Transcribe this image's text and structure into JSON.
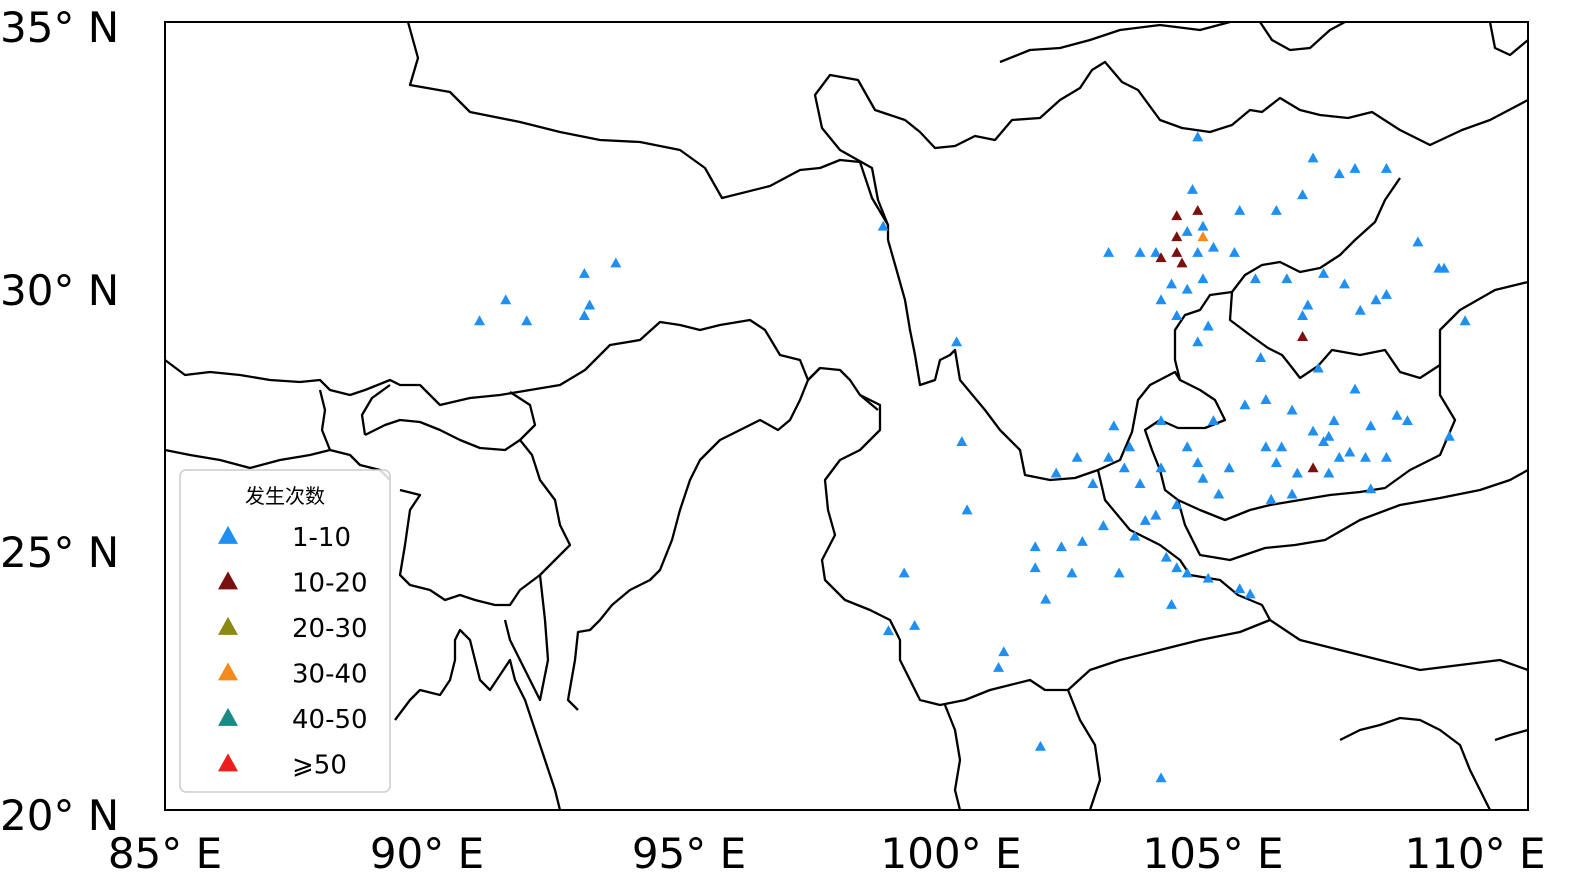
{
  "map": {
    "extent": {
      "lon": [
        85,
        111
      ],
      "lat": [
        20,
        35
      ]
    },
    "x_ticks": [
      {
        "label": "85° E"
      },
      {
        "label": "90° E"
      },
      {
        "label": "95° E"
      },
      {
        "label": "100° E"
      },
      {
        "label": "105° E"
      },
      {
        "label": "110° E"
      }
    ],
    "y_ticks": [
      {
        "label": "35° N"
      },
      {
        "label": "30° N"
      },
      {
        "label": "25° N"
      },
      {
        "label": "20° N"
      }
    ],
    "boundary_color": "#000000"
  },
  "legend": {
    "title": "发生次数",
    "placement": "lower-left",
    "items": [
      {
        "label": "1-10",
        "color": "#1f8ff2",
        "icon": "triangle-icon"
      },
      {
        "label": "10-20",
        "color": "#7a1010",
        "icon": "triangle-icon"
      },
      {
        "label": "20-30",
        "color": "#8a8a14",
        "icon": "triangle-icon"
      },
      {
        "label": "30-40",
        "color": "#f58a1e",
        "icon": "triangle-icon"
      },
      {
        "label": "40-50",
        "color": "#1a8a86",
        "icon": "triangle-icon"
      },
      {
        "label": "⩾50",
        "color": "#ee1c1c",
        "icon": "triangle-icon"
      }
    ]
  },
  "chart_data": {
    "type": "scatter",
    "title": "",
    "xlabel": "",
    "ylabel": "",
    "xlim": [
      85,
      111
    ],
    "ylim": [
      20,
      35
    ],
    "series": [
      {
        "name": "1-10",
        "points": [
          [
            91.0,
            29.3
          ],
          [
            91.5,
            29.7
          ],
          [
            91.9,
            29.3
          ],
          [
            93.0,
            30.2
          ],
          [
            93.1,
            29.6
          ],
          [
            93.0,
            29.4
          ],
          [
            93.6,
            30.4
          ],
          [
            98.7,
            31.1
          ],
          [
            100.1,
            28.9
          ],
          [
            100.2,
            27.0
          ],
          [
            100.3,
            25.7
          ],
          [
            99.1,
            24.5
          ],
          [
            98.8,
            23.4
          ],
          [
            99.3,
            23.5
          ],
          [
            101.0,
            23.0
          ],
          [
            100.9,
            22.7
          ],
          [
            101.7,
            21.2
          ],
          [
            104.0,
            20.6
          ],
          [
            101.6,
            25.0
          ],
          [
            101.6,
            24.6
          ],
          [
            101.8,
            24.0
          ],
          [
            102.0,
            26.4
          ],
          [
            102.1,
            25.0
          ],
          [
            102.3,
            24.5
          ],
          [
            102.4,
            26.7
          ],
          [
            102.5,
            25.1
          ],
          [
            102.7,
            26.2
          ],
          [
            102.9,
            25.4
          ],
          [
            103.0,
            26.7
          ],
          [
            103.1,
            27.3
          ],
          [
            103.2,
            24.5
          ],
          [
            103.3,
            26.5
          ],
          [
            103.4,
            26.9
          ],
          [
            103.5,
            25.2
          ],
          [
            103.6,
            26.2
          ],
          [
            103.7,
            25.5
          ],
          [
            103.9,
            25.6
          ],
          [
            104.0,
            27.4
          ],
          [
            104.0,
            26.5
          ],
          [
            104.1,
            24.8
          ],
          [
            104.3,
            24.6
          ],
          [
            104.3,
            25.8
          ],
          [
            104.5,
            26.9
          ],
          [
            104.5,
            24.5
          ],
          [
            104.7,
            26.6
          ],
          [
            104.8,
            26.3
          ],
          [
            104.9,
            24.4
          ],
          [
            105.0,
            27.4
          ],
          [
            105.1,
            26.0
          ],
          [
            105.3,
            26.5
          ],
          [
            105.5,
            24.2
          ],
          [
            104.2,
            23.9
          ],
          [
            103.0,
            30.6
          ],
          [
            103.6,
            30.6
          ],
          [
            103.9,
            30.6
          ],
          [
            104.2,
            30.0
          ],
          [
            104.0,
            29.7
          ],
          [
            104.3,
            29.4
          ],
          [
            104.7,
            28.9
          ],
          [
            104.9,
            29.2
          ],
          [
            104.5,
            29.9
          ],
          [
            104.8,
            30.1
          ],
          [
            104.7,
            30.6
          ],
          [
            104.5,
            31.0
          ],
          [
            104.8,
            31.1
          ],
          [
            104.6,
            31.8
          ],
          [
            104.7,
            32.8
          ],
          [
            105.0,
            30.7
          ],
          [
            105.5,
            31.4
          ],
          [
            105.4,
            30.6
          ],
          [
            105.8,
            30.1
          ],
          [
            105.9,
            28.6
          ],
          [
            106.0,
            27.8
          ],
          [
            106.2,
            31.4
          ],
          [
            106.4,
            30.1
          ],
          [
            106.5,
            27.6
          ],
          [
            106.6,
            26.4
          ],
          [
            106.7,
            29.4
          ],
          [
            106.8,
            29.6
          ],
          [
            106.9,
            32.4
          ],
          [
            107.1,
            30.2
          ],
          [
            107.0,
            28.4
          ],
          [
            107.3,
            27.4
          ],
          [
            107.4,
            26.7
          ],
          [
            107.4,
            32.1
          ],
          [
            107.5,
            30.0
          ],
          [
            107.7,
            32.2
          ],
          [
            107.8,
            29.5
          ],
          [
            108.0,
            27.3
          ],
          [
            108.1,
            29.7
          ],
          [
            108.5,
            27.5
          ],
          [
            108.7,
            27.4
          ],
          [
            108.3,
            32.2
          ],
          [
            108.3,
            29.8
          ],
          [
            108.9,
            30.8
          ],
          [
            109.3,
            30.3
          ],
          [
            109.4,
            30.3
          ],
          [
            109.8,
            29.3
          ],
          [
            109.5,
            27.1
          ],
          [
            106.7,
            31.7
          ],
          [
            106.9,
            27.2
          ],
          [
            107.1,
            27.0
          ],
          [
            107.2,
            27.1
          ],
          [
            107.6,
            26.8
          ],
          [
            107.9,
            26.7
          ],
          [
            106.2,
            26.6
          ],
          [
            106.3,
            26.9
          ],
          [
            105.6,
            27.7
          ],
          [
            106.0,
            26.9
          ],
          [
            106.5,
            26.0
          ],
          [
            106.1,
            25.9
          ],
          [
            105.7,
            24.1
          ],
          [
            107.2,
            26.4
          ],
          [
            107.7,
            28.0
          ],
          [
            108.0,
            26.1
          ],
          [
            108.3,
            26.7
          ]
        ]
      },
      {
        "name": "10-20",
        "points": [
          [
            104.0,
            30.5
          ],
          [
            104.3,
            30.6
          ],
          [
            104.3,
            30.9
          ],
          [
            104.4,
            30.4
          ],
          [
            104.3,
            31.3
          ],
          [
            104.7,
            31.4
          ],
          [
            106.7,
            29.0
          ],
          [
            106.9,
            26.5
          ]
        ]
      },
      {
        "name": "30-40",
        "points": [
          [
            104.8,
            30.9
          ]
        ]
      }
    ]
  }
}
